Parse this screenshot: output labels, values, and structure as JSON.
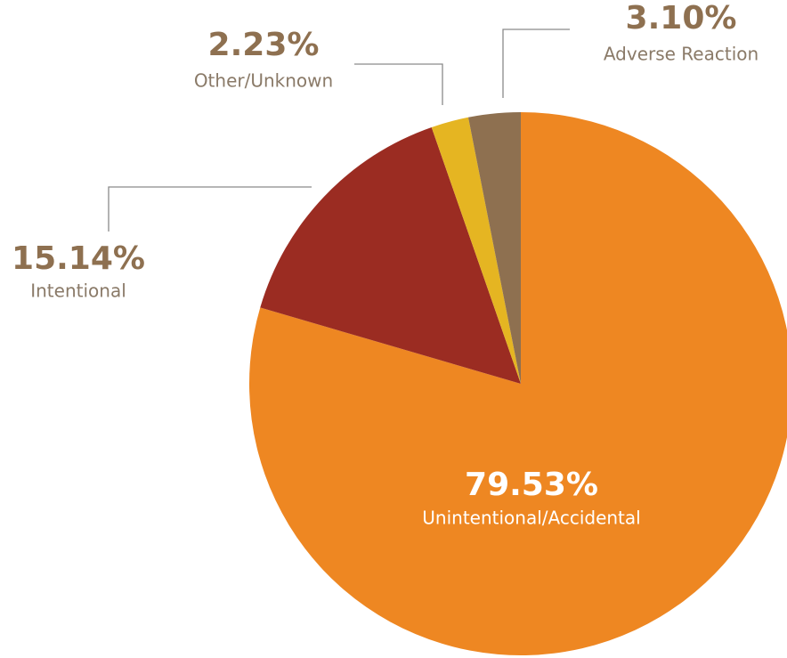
{
  "chart_data": {
    "type": "pie",
    "categories": [
      "Unintentional/Accidental",
      "Intentional",
      "Other/Unknown",
      "Adverse Reaction"
    ],
    "values": [
      79.53,
      15.14,
      2.23,
      3.1
    ],
    "value_labels": [
      "79.53%",
      "15.14%",
      "2.23%",
      "3.10%"
    ],
    "colors": [
      "#ee8722",
      "#9b2c22",
      "#e5b522",
      "#8e7050"
    ]
  }
}
